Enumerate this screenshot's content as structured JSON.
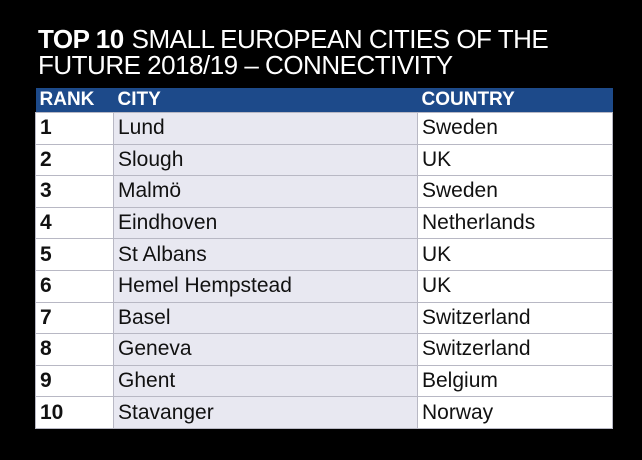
{
  "header": {
    "title_bold": "TOP 10",
    "title_line1": "SMALL EUROPEAN CITIES OF THE",
    "title_line2": "FUTURE 2018/19 – CONNECTIVITY"
  },
  "table": {
    "columns": [
      "RANK",
      "CITY",
      "COUNTRY"
    ],
    "rows": [
      [
        1,
        "Lund",
        "Sweden"
      ],
      [
        2,
        "Slough",
        "UK"
      ],
      [
        3,
        "Malmö",
        "Sweden"
      ],
      [
        4,
        "Eindhoven",
        "Netherlands"
      ],
      [
        5,
        "St Albans",
        "UK"
      ],
      [
        6,
        "Hemel Hempstead",
        "UK"
      ],
      [
        7,
        "Basel",
        "Switzerland"
      ],
      [
        8,
        "Geneva",
        "Switzerland"
      ],
      [
        9,
        "Ghent",
        "Belgium"
      ],
      [
        10,
        "Stavanger",
        "Norway"
      ]
    ]
  }
}
